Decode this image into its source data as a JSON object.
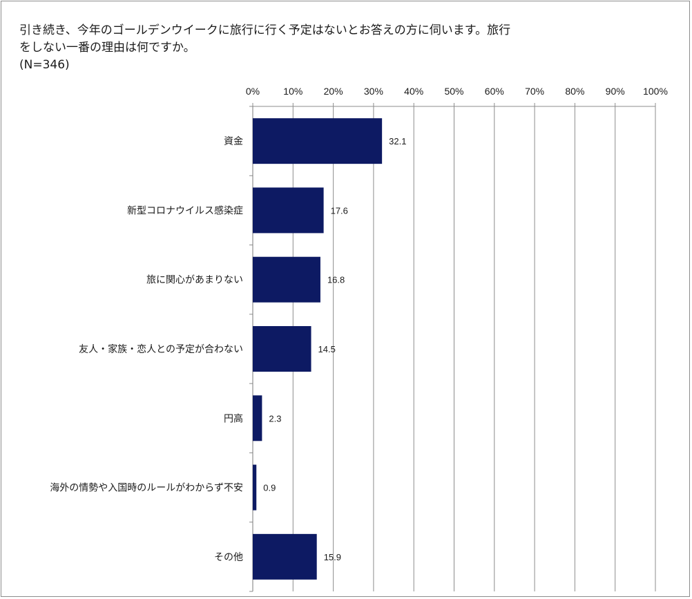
{
  "title_lines": [
    "引き続き、今年のゴールデンウイークに旅行に行く予定はないとお答えの方に伺います。旅行",
    "をしない一番の理由は何ですか。"
  ],
  "sample_size": "(N=346)",
  "chart_data": {
    "type": "bar",
    "orientation": "horizontal",
    "categories": [
      "資金",
      "新型コロナウイルス感染症",
      "旅に関心があまりない",
      "友人・家族・恋人との予定が合わない",
      "円高",
      "海外の情勢や入国時のルールがわからず不安",
      "その他"
    ],
    "values": [
      32.1,
      17.6,
      16.8,
      14.5,
      2.3,
      0.9,
      15.9
    ],
    "data_labels": [
      "32.1",
      "17.6",
      "16.8",
      "14.5",
      "2.3",
      "0.9",
      "15.9"
    ],
    "xlim": [
      0,
      100
    ],
    "xticks": [
      "0%",
      "10%",
      "20%",
      "30%",
      "40%",
      "50%",
      "60%",
      "70%",
      "80%",
      "90%",
      "100%"
    ],
    "x_axis_position": "top",
    "grid": true,
    "bar_color": "#0d1a63",
    "grid_color": "#8c8c8c"
  }
}
